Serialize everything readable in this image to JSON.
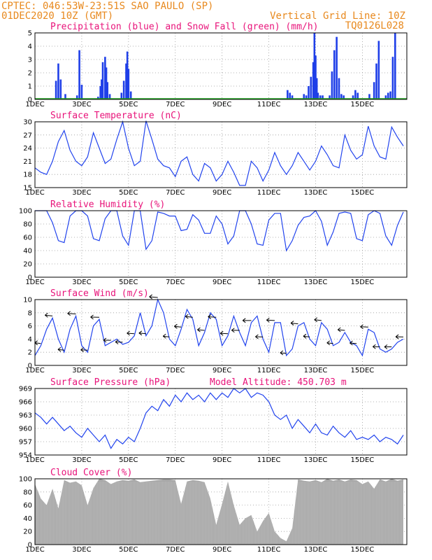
{
  "header": {
    "line1": "CPTEC:   046:53W-23:51S  SAO PAULO (SP)",
    "line2": "01DEC2020 10Z (GMT)",
    "grid_note": "Vertical Grid Line: 10Z",
    "code": "TQ0126L028"
  },
  "x_labels": [
    "1DEC",
    "3DEC",
    "5DEC",
    "7DEC",
    "9DEC",
    "11DEC",
    "13DEC",
    "15DEC"
  ],
  "colors": {
    "line": "#2244ee",
    "precip": "#1f3fe8",
    "snow": "#22aa22",
    "cloud": "#a8a8a8",
    "title": "#e8137a",
    "header": "#e8891e"
  },
  "chart_data": [
    {
      "type": "bar",
      "title": "Precipitation (blue) and Snow Fall (green) (mm/h)",
      "ylim": [
        0,
        5
      ],
      "yticks": [
        0,
        1,
        2,
        3,
        4,
        5
      ],
      "series": [
        {
          "name": "Precipitation",
          "x": [
            0.9,
            1.0,
            1.1,
            1.3,
            1.8,
            1.9,
            2.0,
            2.7,
            2.8,
            2.85,
            2.9,
            3.0,
            3.05,
            3.1,
            3.2,
            3.7,
            3.8,
            3.9,
            3.95,
            4.0,
            4.1,
            10.8,
            10.9,
            11.0,
            11.5,
            11.6,
            11.7,
            11.8,
            11.9,
            11.95,
            12.0,
            12.05,
            12.1,
            12.2,
            12.3,
            12.6,
            12.7,
            12.8,
            12.9,
            13.0,
            13.1,
            13.2,
            13.6,
            13.7,
            13.8,
            14.3,
            14.5,
            14.6,
            14.7,
            15.0,
            15.1,
            15.2,
            15.3,
            15.4
          ],
          "values": [
            1.4,
            2.7,
            1.5,
            0.4,
            0.3,
            3.7,
            1.1,
            0.2,
            1.0,
            1.5,
            2.8,
            3.2,
            2.4,
            1.3,
            0.4,
            0.5,
            1.4,
            2.7,
            3.6,
            2.3,
            0.6,
            0.7,
            0.5,
            0.3,
            0.4,
            0.3,
            1.0,
            1.7,
            2.8,
            5.0,
            3.3,
            1.6,
            0.5,
            0.3,
            0.3,
            0.3,
            2.1,
            3.7,
            4.7,
            1.6,
            0.4,
            0.3,
            0.3,
            0.7,
            0.5,
            0.4,
            1.3,
            2.7,
            4.4,
            0.3,
            0.5,
            0.6,
            3.2,
            5.0
          ]
        },
        {
          "name": "Snow Fall",
          "x": [
            0.9,
            12.9
          ],
          "values": [
            0.1,
            0.1
          ]
        }
      ]
    },
    {
      "type": "line",
      "title": "Surface Temperature (nC)",
      "ylim": [
        15,
        30
      ],
      "yticks": [
        15,
        18,
        21,
        24,
        27,
        30
      ],
      "x": [
        0,
        0.25,
        0.5,
        0.75,
        1.0,
        1.25,
        1.5,
        1.75,
        2.0,
        2.25,
        2.5,
        2.75,
        3.0,
        3.25,
        3.5,
        3.75,
        4.0,
        4.25,
        4.5,
        4.75,
        5.0,
        5.25,
        5.5,
        5.75,
        6.0,
        6.25,
        6.5,
        6.75,
        7.0,
        7.25,
        7.5,
        7.75,
        8.0,
        8.25,
        8.5,
        8.75,
        9.0,
        9.25,
        9.5,
        9.75,
        10.0,
        10.25,
        10.5,
        10.75,
        11.0,
        11.25,
        11.5,
        11.75,
        12.0,
        12.25,
        12.5,
        12.75,
        13.0,
        13.25,
        13.5,
        13.75,
        14.0,
        14.25,
        14.5,
        14.75,
        15.0,
        15.25,
        15.5,
        15.75
      ],
      "series": [
        {
          "name": "Temperature",
          "values": [
            19.5,
            18.5,
            18.0,
            21.0,
            25.5,
            28.0,
            23.5,
            21.0,
            20.0,
            22.0,
            27.5,
            24.0,
            20.5,
            21.5,
            26.0,
            30.0,
            24.0,
            20.0,
            21.0,
            30.2,
            26.0,
            21.5,
            20.0,
            19.5,
            17.5,
            21.0,
            22.0,
            18.0,
            16.5,
            20.5,
            19.5,
            16.5,
            18.0,
            21.0,
            18.5,
            15.5,
            15.5,
            21.0,
            19.5,
            16.5,
            19.0,
            23.0,
            20.0,
            18.0,
            20.0,
            23.0,
            21.0,
            19.0,
            21.0,
            24.5,
            22.5,
            20.0,
            19.5,
            27.0,
            23.5,
            21.5,
            22.5,
            29.0,
            24.5,
            22.0,
            21.5,
            28.8,
            26.5,
            24.5
          ]
        }
      ]
    },
    {
      "type": "line",
      "title": "Relative Humidity (%)",
      "ylim": [
        0,
        100
      ],
      "yticks": [
        0,
        20,
        40,
        60,
        80,
        100
      ],
      "x": [
        0,
        0.25,
        0.5,
        0.75,
        1.0,
        1.25,
        1.5,
        1.75,
        2.0,
        2.25,
        2.5,
        2.75,
        3.0,
        3.25,
        3.5,
        3.75,
        4.0,
        4.25,
        4.5,
        4.75,
        5.0,
        5.25,
        5.5,
        5.75,
        6.0,
        6.25,
        6.5,
        6.75,
        7.0,
        7.25,
        7.5,
        7.75,
        8.0,
        8.25,
        8.5,
        8.75,
        9.0,
        9.25,
        9.5,
        9.75,
        10.0,
        10.25,
        10.5,
        10.75,
        11.0,
        11.25,
        11.5,
        11.75,
        12.0,
        12.25,
        12.5,
        12.75,
        13.0,
        13.25,
        13.5,
        13.75,
        14.0,
        14.25,
        14.5,
        14.75,
        15.0,
        15.25,
        15.5,
        15.75
      ],
      "series": [
        {
          "name": "Humidity",
          "values": [
            100,
            100,
            100,
            82,
            55,
            52,
            92,
            100,
            100,
            92,
            58,
            55,
            88,
            100,
            100,
            62,
            48,
            100,
            100,
            42,
            55,
            98,
            96,
            92,
            92,
            70,
            72,
            94,
            86,
            66,
            66,
            92,
            80,
            50,
            62,
            100,
            100,
            80,
            50,
            48,
            86,
            96,
            96,
            40,
            55,
            78,
            90,
            92,
            100,
            84,
            48,
            68,
            96,
            98,
            96,
            58,
            55,
            94,
            100,
            96,
            62,
            48,
            78,
            98
          ]
        }
      ]
    },
    {
      "type": "line",
      "title": "Surface Wind (m/s)",
      "ylim": [
        0,
        10
      ],
      "yticks": [
        0,
        2,
        4,
        6,
        8,
        10
      ],
      "x": [
        0,
        0.25,
        0.5,
        0.75,
        1.0,
        1.25,
        1.5,
        1.75,
        2.0,
        2.25,
        2.5,
        2.75,
        3.0,
        3.25,
        3.5,
        3.75,
        4.0,
        4.25,
        4.5,
        4.75,
        5.0,
        5.25,
        5.5,
        5.75,
        6.0,
        6.25,
        6.5,
        6.75,
        7.0,
        7.25,
        7.5,
        7.75,
        8.0,
        8.25,
        8.5,
        8.75,
        9.0,
        9.25,
        9.5,
        9.75,
        10.0,
        10.25,
        10.5,
        10.75,
        11.0,
        11.25,
        11.5,
        11.75,
        12.0,
        12.25,
        12.5,
        12.75,
        13.0,
        13.25,
        13.5,
        13.75,
        14.0,
        14.25,
        14.5,
        14.75,
        15.0,
        15.25,
        15.5,
        15.75
      ],
      "series": [
        {
          "name": "Wind Speed",
          "values": [
            1.5,
            3.0,
            5.5,
            7.2,
            4.0,
            2.0,
            5.5,
            7.5,
            3.0,
            2.0,
            6.0,
            7.0,
            3.0,
            3.5,
            4.0,
            3.2,
            3.5,
            4.5,
            8.0,
            4.5,
            6.0,
            10.0,
            8.0,
            4.0,
            3.0,
            5.5,
            8.5,
            7.0,
            3.0,
            5.0,
            8.0,
            7.0,
            3.0,
            4.5,
            7.5,
            5.0,
            3.0,
            6.5,
            7.5,
            4.0,
            2.0,
            6.5,
            6.5,
            1.5,
            2.5,
            6.0,
            6.5,
            4.0,
            3.0,
            6.5,
            5.5,
            3.0,
            3.5,
            5.0,
            3.5,
            3.0,
            1.5,
            5.5,
            5.0,
            2.5,
            2.0,
            2.5,
            3.5,
            4.0
          ]
        }
      ]
    },
    {
      "type": "line",
      "title": "Surface Pressure (hPa)",
      "annotation": "Model Altitude: 450.703 m",
      "ylim": [
        954,
        969
      ],
      "yticks": [
        954,
        957,
        960,
        963,
        966,
        969
      ],
      "x": [
        0,
        0.25,
        0.5,
        0.75,
        1.0,
        1.25,
        1.5,
        1.75,
        2.0,
        2.25,
        2.5,
        2.75,
        3.0,
        3.25,
        3.5,
        3.75,
        4.0,
        4.25,
        4.5,
        4.75,
        5.0,
        5.25,
        5.5,
        5.75,
        6.0,
        6.25,
        6.5,
        6.75,
        7.0,
        7.25,
        7.5,
        7.75,
        8.0,
        8.25,
        8.5,
        8.75,
        9.0,
        9.25,
        9.5,
        9.75,
        10.0,
        10.25,
        10.5,
        10.75,
        11.0,
        11.25,
        11.5,
        11.75,
        12.0,
        12.25,
        12.5,
        12.75,
        13.0,
        13.25,
        13.5,
        13.75,
        14.0,
        14.25,
        14.5,
        14.75,
        15.0,
        15.25,
        15.5,
        15.75
      ],
      "series": [
        {
          "name": "Pressure",
          "values": [
            963.5,
            962.5,
            961.0,
            962.5,
            961.0,
            959.5,
            960.5,
            959.0,
            958.0,
            960.0,
            958.5,
            957.0,
            958.5,
            955.5,
            957.5,
            956.5,
            958.0,
            957.0,
            960.0,
            963.5,
            965.0,
            964.0,
            966.5,
            965.0,
            967.5,
            966.0,
            968.0,
            966.5,
            967.5,
            966.0,
            968.0,
            966.5,
            968.0,
            967.0,
            969.0,
            968.0,
            969.0,
            967.0,
            968.0,
            967.5,
            966.0,
            963.0,
            962.0,
            963.0,
            960.0,
            962.0,
            960.5,
            959.0,
            961.0,
            959.0,
            958.5,
            960.5,
            959.0,
            958.0,
            959.5,
            957.5,
            958.0,
            957.5,
            958.5,
            957.0,
            958.0,
            957.5,
            956.5,
            958.5
          ]
        }
      ]
    },
    {
      "type": "area",
      "title": "Cloud Cover (%)",
      "ylim": [
        0,
        100
      ],
      "yticks": [
        0,
        20,
        40,
        60,
        80,
        100
      ],
      "x": [
        0,
        0.25,
        0.5,
        0.75,
        1.0,
        1.25,
        1.5,
        1.75,
        2.0,
        2.25,
        2.5,
        2.75,
        3.0,
        3.25,
        3.5,
        3.75,
        4.0,
        4.25,
        4.5,
        4.75,
        5.0,
        5.25,
        5.5,
        5.75,
        6.0,
        6.25,
        6.5,
        6.75,
        7.0,
        7.25,
        7.5,
        7.75,
        8.0,
        8.25,
        8.5,
        8.75,
        9.0,
        9.25,
        9.5,
        9.75,
        10.0,
        10.25,
        10.5,
        10.75,
        11.0,
        11.25,
        11.5,
        11.75,
        12.0,
        12.25,
        12.5,
        12.75,
        13.0,
        13.25,
        13.5,
        13.75,
        14.0,
        14.25,
        14.5,
        14.75,
        15.0,
        15.25,
        15.5,
        15.75
      ],
      "series": [
        {
          "name": "Cloud Cover",
          "values": [
            92,
            70,
            60,
            85,
            55,
            98,
            94,
            96,
            90,
            60,
            86,
            100,
            98,
            92,
            96,
            98,
            97,
            99,
            95,
            96,
            97,
            98,
            99,
            99,
            98,
            62,
            96,
            98,
            97,
            95,
            70,
            30,
            62,
            96,
            60,
            30,
            40,
            45,
            20,
            36,
            48,
            20,
            10,
            5,
            25,
            99,
            97,
            96,
            98,
            95,
            100,
            97,
            99,
            96,
            99,
            98,
            92,
            96,
            85,
            99,
            96,
            100,
            97,
            99
          ]
        }
      ]
    }
  ]
}
